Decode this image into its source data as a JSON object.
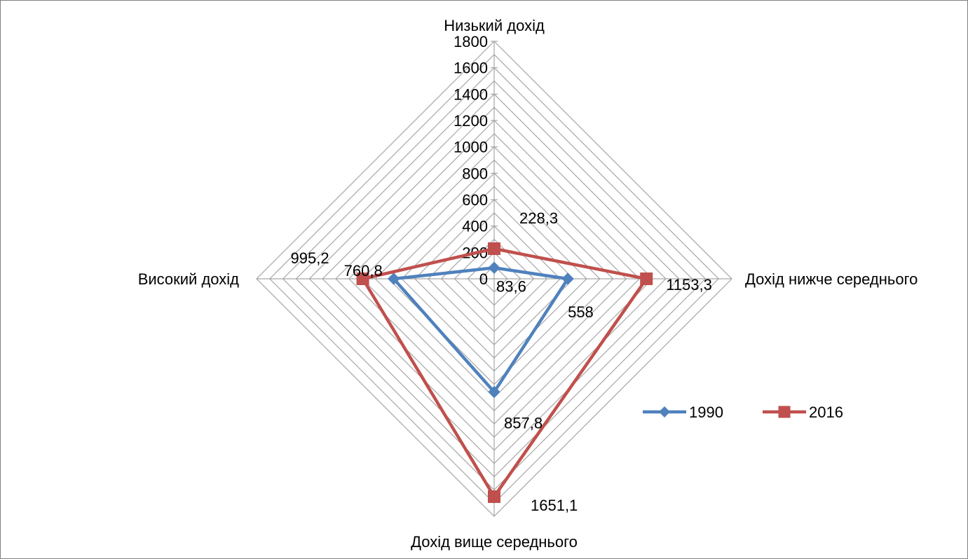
{
  "chart_data": {
    "type": "radar",
    "categories": [
      "Низький дохід",
      "Дохід нижче середнього",
      "Дохід вище середнього",
      "Високий дохід"
    ],
    "axis": {
      "min": 0,
      "max": 1800,
      "major_step": 200,
      "ticks": [
        "0",
        "200",
        "400",
        "600",
        "800",
        "1000",
        "1200",
        "1400",
        "1600",
        "1800"
      ],
      "grid": true,
      "gridline_color": "#a6a6a6"
    },
    "series": [
      {
        "name": "1990",
        "color": "#4f81bd",
        "marker": "diamond",
        "values": [
          83.6,
          558,
          857.8,
          760.8
        ],
        "labels": [
          "83,6",
          "558",
          "857,8",
          "760,8"
        ]
      },
      {
        "name": "2016",
        "color": "#c0504d",
        "marker": "square",
        "values": [
          228.3,
          1153.3,
          1651.1,
          995.2
        ],
        "labels": [
          "228,3",
          "1153,3",
          "1651,1",
          "995,2"
        ]
      }
    ],
    "legend_position": "right"
  }
}
